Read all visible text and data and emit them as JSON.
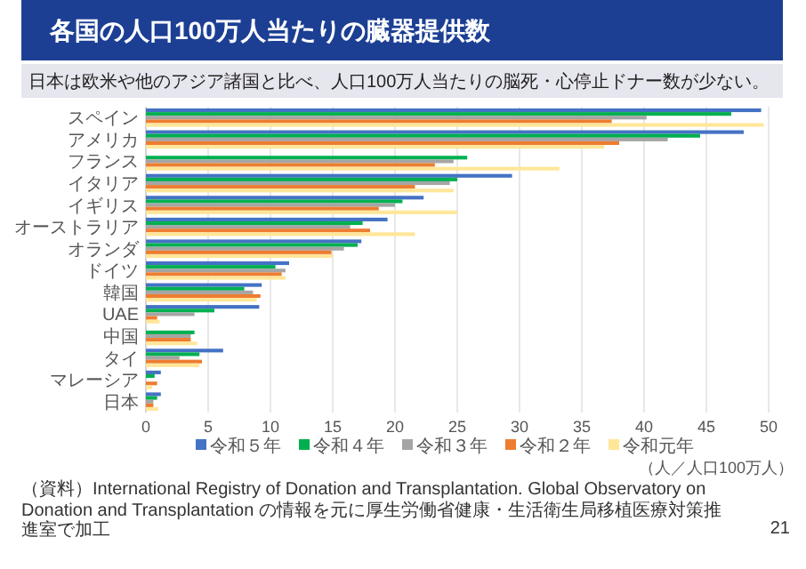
{
  "chart_data": {
    "type": "bar",
    "orientation": "horizontal",
    "title": "各国の人口100万人当たりの臓器提供数",
    "subtitle": "日本は欧米や他のアジア諸国と比べ、人口100万人当たりの脳死・心停止ドナー数が少ない。",
    "xlabel": "（人／人口100万人）",
    "categories": [
      "スペイン",
      "アメリカ",
      "フランス",
      "イタリア",
      "イギリス",
      "オーストラリア",
      "オランダ",
      "ドイツ",
      "韓国",
      "UAE",
      "中国",
      "タイ",
      "マレーシア",
      "日本"
    ],
    "series": [
      {
        "name": "令和５年",
        "color": "#4472c4",
        "values": [
          49.4,
          48.0,
          null,
          29.4,
          22.3,
          19.4,
          17.3,
          11.5,
          9.3,
          9.1,
          null,
          6.2,
          1.2,
          1.2
        ]
      },
      {
        "name": "令和４年",
        "color": "#00b050",
        "values": [
          47.0,
          44.5,
          25.8,
          25.0,
          20.6,
          17.4,
          17.0,
          10.4,
          7.9,
          5.5,
          3.9,
          4.3,
          0.7,
          0.9
        ]
      },
      {
        "name": "令和３年",
        "color": "#a5a5a5",
        "values": [
          40.2,
          41.9,
          24.7,
          24.4,
          20.0,
          16.4,
          15.9,
          11.2,
          8.6,
          3.9,
          3.6,
          2.7,
          null,
          0.6
        ]
      },
      {
        "name": "令和２年",
        "color": "#ed7d31",
        "values": [
          37.4,
          38.0,
          23.2,
          21.6,
          18.7,
          18.0,
          14.9,
          10.9,
          9.2,
          0.9,
          3.6,
          4.5,
          0.9,
          0.6
        ]
      },
      {
        "name": "令和元年",
        "color": "#ffe699",
        "values": [
          49.6,
          36.8,
          33.2,
          24.7,
          25.0,
          21.6,
          15.0,
          11.2,
          8.9,
          1.1,
          4.1,
          4.3,
          0.5,
          1.0
        ]
      }
    ],
    "xlim": [
      0,
      50
    ],
    "xticks": [
      0,
      5,
      10,
      15,
      20,
      25,
      30,
      35,
      40,
      45,
      50
    ],
    "grid": "x",
    "legend": "bottom",
    "annotations": [
      "（資料）International Registry of Donation and Transplantation. Global Observatory on Donation and Transplantation の情報を元に厚生労働省健康・生活衛生局移植医療対策推進室で加工",
      "21"
    ]
  }
}
